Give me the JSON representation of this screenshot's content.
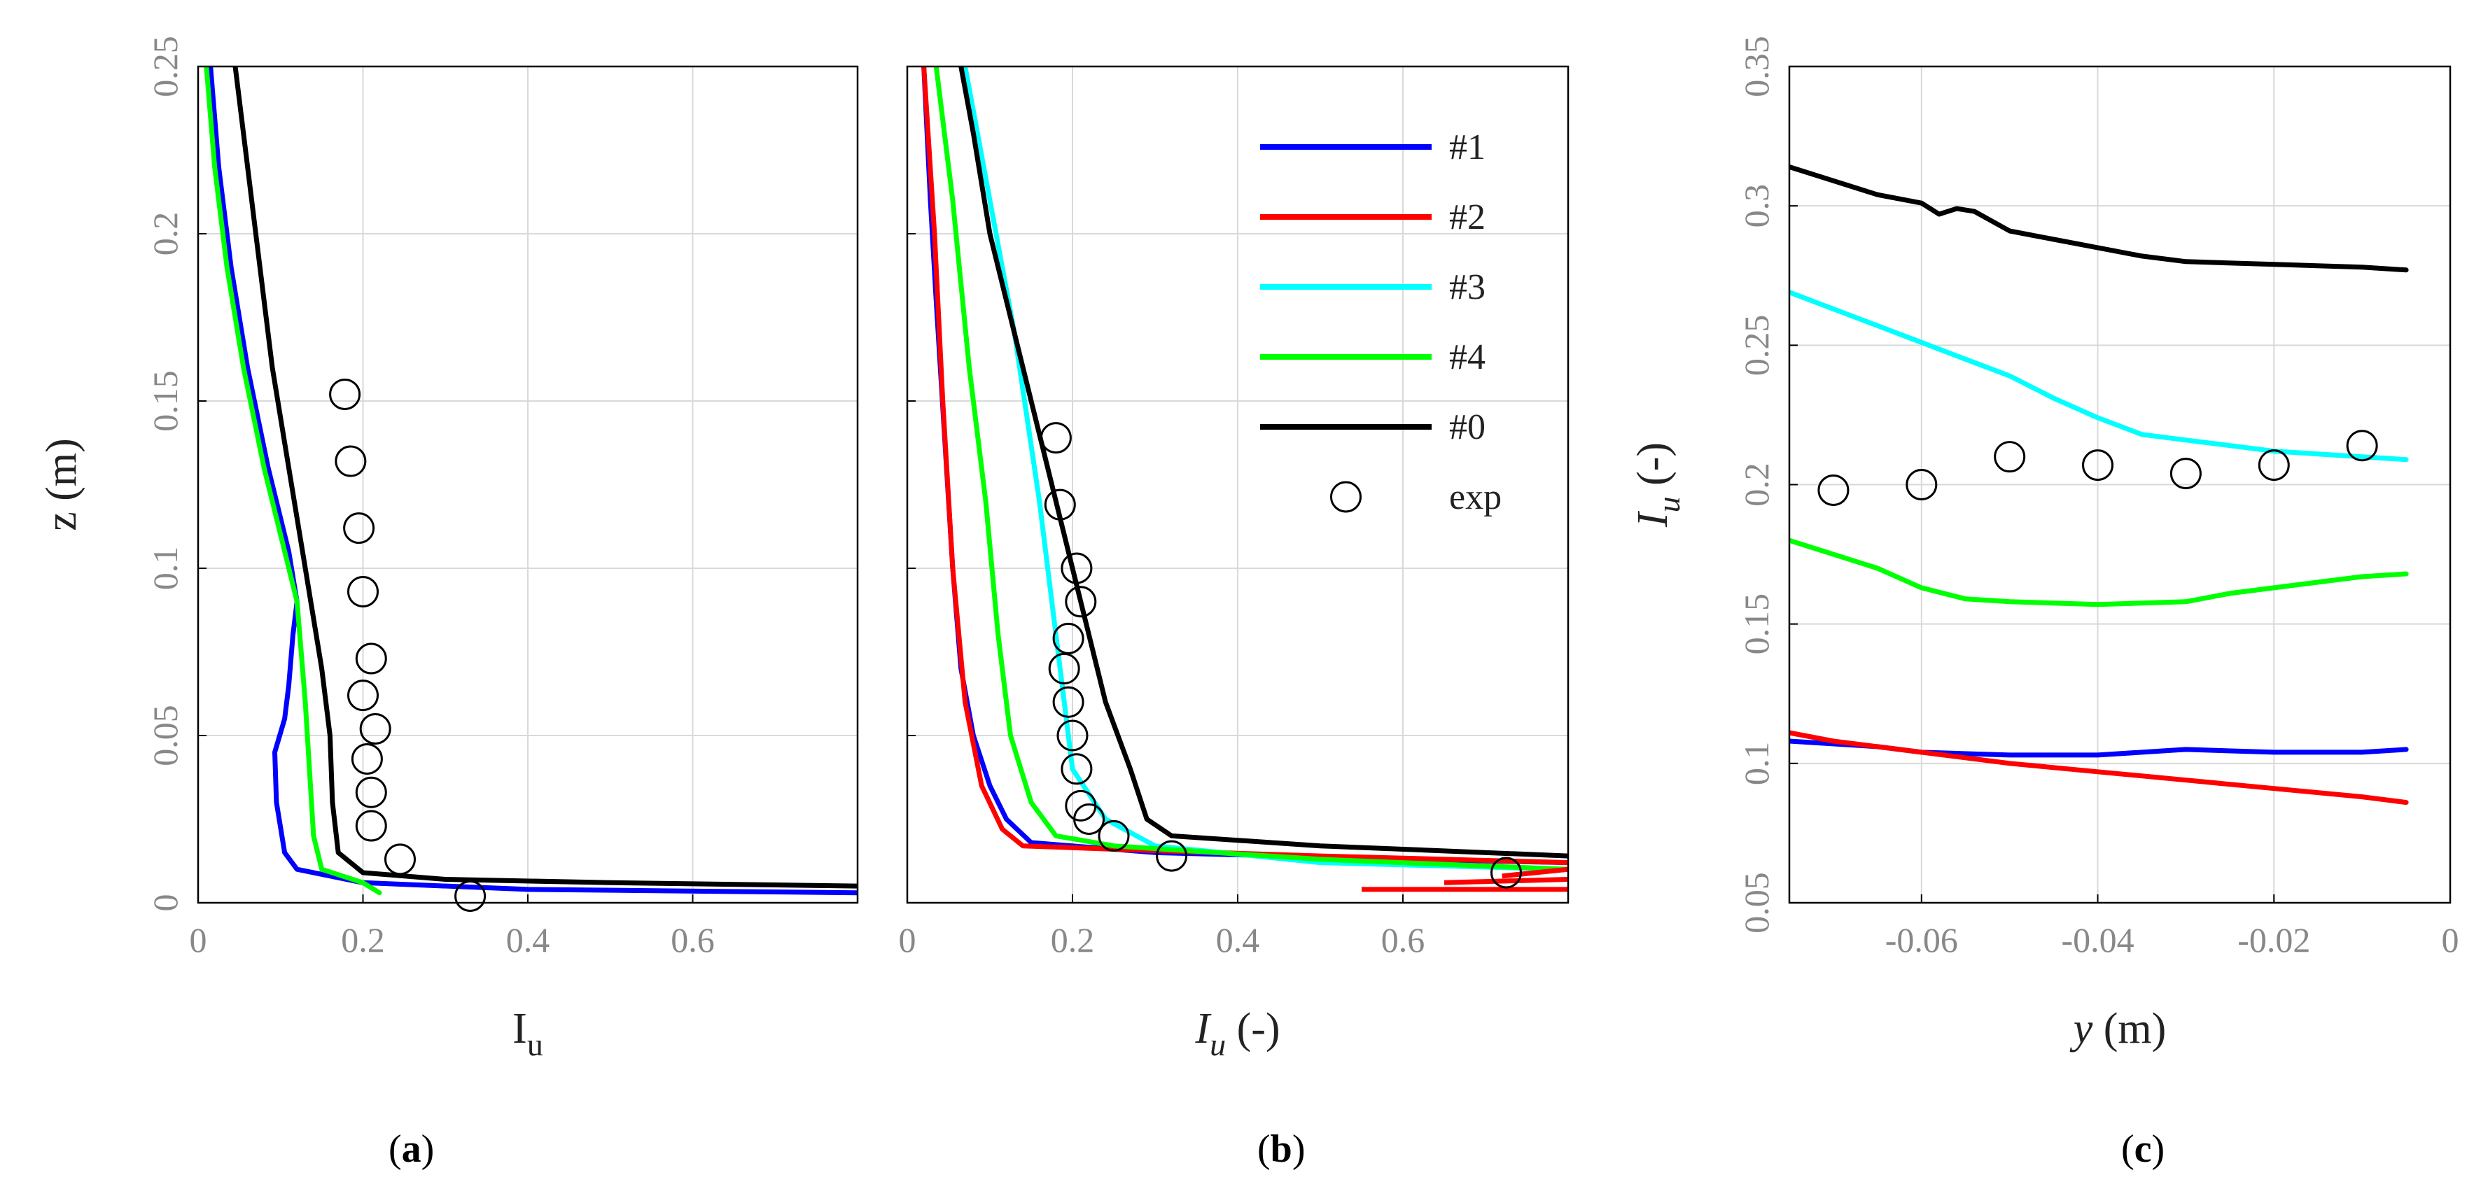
{
  "figure": {
    "panel_labels": [
      {
        "open": "(",
        "letter": "a",
        "close": ")"
      },
      {
        "open": "(",
        "letter": "b",
        "close": ")"
      },
      {
        "open": "(",
        "letter": "c",
        "close": ")"
      }
    ]
  },
  "colors": {
    "s1": "#0000ff",
    "s2": "#ff0000",
    "s3": "#00ffff",
    "s4": "#00ff00",
    "s0": "#000000",
    "grid": "#d9d9d9"
  },
  "chart_data": [
    {
      "id": "a",
      "type": "line",
      "xlabel": "I",
      "xlabel_sub": "u",
      "ylabel": "z (m)",
      "xlim": [
        0,
        0.8
      ],
      "ylim": [
        0,
        0.25
      ],
      "xticks": [
        0,
        0.2,
        0.4,
        0.6
      ],
      "xtick_labels": [
        "0",
        "0.2",
        "0.4",
        "0.6"
      ],
      "yticks": [
        0,
        0.05,
        0.1,
        0.15,
        0.2,
        0.25
      ],
      "ytick_labels": [
        "0",
        "0.05",
        "0.1",
        "0.15",
        "0.2",
        "0.25"
      ],
      "series": [
        {
          "name": "#1",
          "color": "#0000ff",
          "points": [
            [
              0.8,
              0.003
            ],
            [
              0.4,
              0.004
            ],
            [
              0.2,
              0.006
            ],
            [
              0.12,
              0.01
            ],
            [
              0.105,
              0.015
            ],
            [
              0.095,
              0.03
            ],
            [
              0.093,
              0.045
            ],
            [
              0.105,
              0.055
            ],
            [
              0.11,
              0.065
            ],
            [
              0.115,
              0.08
            ],
            [
              0.12,
              0.09
            ],
            [
              0.11,
              0.105
            ],
            [
              0.085,
              0.13
            ],
            [
              0.06,
              0.16
            ],
            [
              0.04,
              0.19
            ],
            [
              0.025,
              0.22
            ],
            [
              0.015,
              0.25
            ]
          ]
        },
        {
          "name": "#4",
          "color": "#00ff00",
          "points": [
            [
              0.22,
              0.003
            ],
            [
              0.2,
              0.006
            ],
            [
              0.15,
              0.01
            ],
            [
              0.14,
              0.02
            ],
            [
              0.135,
              0.04
            ],
            [
              0.13,
              0.06
            ],
            [
              0.12,
              0.09
            ],
            [
              0.1,
              0.11
            ],
            [
              0.08,
              0.13
            ],
            [
              0.055,
              0.16
            ],
            [
              0.035,
              0.19
            ],
            [
              0.02,
              0.22
            ],
            [
              0.01,
              0.25
            ]
          ]
        },
        {
          "name": "#0",
          "color": "#000000",
          "points": [
            [
              0.8,
              0.005
            ],
            [
              0.5,
              0.006
            ],
            [
              0.3,
              0.007
            ],
            [
              0.2,
              0.009
            ],
            [
              0.17,
              0.015
            ],
            [
              0.163,
              0.03
            ],
            [
              0.16,
              0.05
            ],
            [
              0.15,
              0.07
            ],
            [
              0.13,
              0.1
            ],
            [
              0.11,
              0.13
            ],
            [
              0.09,
              0.16
            ],
            [
              0.07,
              0.2
            ],
            [
              0.05,
              0.24
            ],
            [
              0.045,
              0.25
            ]
          ]
        }
      ],
      "exp_points": [
        [
          0.33,
          0.002
        ],
        [
          0.245,
          0.013
        ],
        [
          0.21,
          0.023
        ],
        [
          0.21,
          0.033
        ],
        [
          0.205,
          0.043
        ],
        [
          0.215,
          0.052
        ],
        [
          0.2,
          0.062
        ],
        [
          0.21,
          0.073
        ],
        [
          0.2,
          0.093
        ],
        [
          0.195,
          0.112
        ],
        [
          0.185,
          0.132
        ],
        [
          0.178,
          0.152
        ]
      ]
    },
    {
      "id": "b",
      "type": "line",
      "xlabel": "I",
      "xlabel_sub": "u",
      "xlabel_suffix": " (-)",
      "ylabel": "",
      "xlim": [
        0,
        0.8
      ],
      "ylim": [
        0,
        0.25
      ],
      "xticks": [
        0,
        0.2,
        0.4,
        0.6
      ],
      "xtick_labels": [
        "0",
        "0.2",
        "0.4",
        "0.6"
      ],
      "yticks": [
        0,
        0.05,
        0.1,
        0.15,
        0.2,
        0.25
      ],
      "ytick_labels": [],
      "series": [
        {
          "name": "#1",
          "color": "#0000ff",
          "points": [
            [
              0.8,
              0.012
            ],
            [
              0.6,
              0.013
            ],
            [
              0.3,
              0.015
            ],
            [
              0.15,
              0.018
            ],
            [
              0.12,
              0.025
            ],
            [
              0.1,
              0.035
            ],
            [
              0.08,
              0.05
            ],
            [
              0.065,
              0.07
            ],
            [
              0.055,
              0.1
            ],
            [
              0.045,
              0.14
            ],
            [
              0.035,
              0.18
            ],
            [
              0.028,
              0.21
            ],
            [
              0.02,
              0.25
            ]
          ]
        },
        {
          "name": "#2",
          "color": "#ff0000",
          "points": [
            [
              0.8,
              0.012
            ],
            [
              0.5,
              0.014
            ],
            [
              0.25,
              0.016
            ],
            [
              0.14,
              0.017
            ],
            [
              0.115,
              0.022
            ],
            [
              0.09,
              0.035
            ],
            [
              0.07,
              0.06
            ],
            [
              0.055,
              0.1
            ],
            [
              0.043,
              0.15
            ],
            [
              0.033,
              0.2
            ],
            [
              0.02,
              0.25
            ]
          ]
        },
        {
          "name": "#3",
          "color": "#00ffff",
          "points": [
            [
              0.8,
              0.01
            ],
            [
              0.5,
              0.012
            ],
            [
              0.3,
              0.017
            ],
            [
              0.24,
              0.025
            ],
            [
              0.2,
              0.04
            ],
            [
              0.19,
              0.06
            ],
            [
              0.18,
              0.08
            ],
            [
              0.16,
              0.12
            ],
            [
              0.13,
              0.17
            ],
            [
              0.1,
              0.21
            ],
            [
              0.07,
              0.25
            ]
          ]
        },
        {
          "name": "#4",
          "color": "#00ff00",
          "points": [
            [
              0.8,
              0.01
            ],
            [
              0.5,
              0.013
            ],
            [
              0.25,
              0.017
            ],
            [
              0.18,
              0.02
            ],
            [
              0.15,
              0.03
            ],
            [
              0.125,
              0.05
            ],
            [
              0.11,
              0.08
            ],
            [
              0.095,
              0.12
            ],
            [
              0.075,
              0.16
            ],
            [
              0.055,
              0.21
            ],
            [
              0.035,
              0.25
            ]
          ]
        },
        {
          "name": "#0",
          "color": "#000000",
          "points": [
            [
              0.8,
              0.014
            ],
            [
              0.5,
              0.017
            ],
            [
              0.32,
              0.02
            ],
            [
              0.29,
              0.025
            ],
            [
              0.27,
              0.04
            ],
            [
              0.24,
              0.06
            ],
            [
              0.2,
              0.1
            ],
            [
              0.15,
              0.15
            ],
            [
              0.1,
              0.2
            ],
            [
              0.08,
              0.23
            ],
            [
              0.065,
              0.25
            ]
          ]
        }
      ],
      "extra_red_lines": [
        {
          "points": [
            [
              0.55,
              0.004
            ],
            [
              0.8,
              0.004
            ]
          ]
        },
        {
          "points": [
            [
              0.65,
              0.006
            ],
            [
              0.8,
              0.007
            ]
          ]
        },
        {
          "points": [
            [
              0.72,
              0.008
            ],
            [
              0.8,
              0.01
            ]
          ]
        }
      ],
      "exp_points": [
        [
          0.725,
          0.009
        ],
        [
          0.32,
          0.014
        ],
        [
          0.25,
          0.02
        ],
        [
          0.22,
          0.025
        ],
        [
          0.21,
          0.029
        ],
        [
          0.205,
          0.04
        ],
        [
          0.2,
          0.05
        ],
        [
          0.195,
          0.06
        ],
        [
          0.19,
          0.07
        ],
        [
          0.195,
          0.079
        ],
        [
          0.21,
          0.09
        ],
        [
          0.205,
          0.1
        ],
        [
          0.185,
          0.119
        ],
        [
          0.18,
          0.139
        ]
      ],
      "legend": {
        "placement": "top-right",
        "entries": [
          {
            "label": "#1",
            "color": "#0000ff",
            "kind": "line"
          },
          {
            "label": "#2",
            "color": "#ff0000",
            "kind": "line"
          },
          {
            "label": "#3",
            "color": "#00ffff",
            "kind": "line"
          },
          {
            "label": "#4",
            "color": "#00ff00",
            "kind": "line"
          },
          {
            "label": "#0",
            "color": "#000000",
            "kind": "line"
          },
          {
            "label": "exp",
            "color": "#000000",
            "kind": "marker"
          }
        ]
      }
    },
    {
      "id": "c",
      "type": "line",
      "xlabel": "y",
      "xlabel_suffix": " (m)",
      "ylabel": "I",
      "ylabel_sub": "u",
      "ylabel_suffix": " (-)",
      "xlim": [
        -0.075,
        0
      ],
      "ylim": [
        0.05,
        0.35
      ],
      "xticks": [
        -0.06,
        -0.04,
        -0.02,
        0
      ],
      "xtick_labels": [
        "-0.06",
        "-0.04",
        "-0.02",
        "0"
      ],
      "yticks": [
        0.05,
        0.1,
        0.15,
        0.2,
        0.25,
        0.3,
        0.35
      ],
      "ytick_labels": [
        "0.05",
        "0.1",
        "0.15",
        "0.2",
        "0.25",
        "0.3",
        "0.35"
      ],
      "series": [
        {
          "name": "#0",
          "color": "#000000",
          "points": [
            [
              -0.075,
              0.314
            ],
            [
              -0.07,
              0.309
            ],
            [
              -0.065,
              0.304
            ],
            [
              -0.06,
              0.301
            ],
            [
              -0.058,
              0.297
            ],
            [
              -0.056,
              0.299
            ],
            [
              -0.054,
              0.298
            ],
            [
              -0.05,
              0.291
            ],
            [
              -0.045,
              0.288
            ],
            [
              -0.04,
              0.285
            ],
            [
              -0.035,
              0.282
            ],
            [
              -0.03,
              0.28
            ],
            [
              -0.02,
              0.279
            ],
            [
              -0.01,
              0.278
            ],
            [
              -0.005,
              0.277
            ]
          ]
        },
        {
          "name": "#3",
          "color": "#00ffff",
          "points": [
            [
              -0.075,
              0.269
            ],
            [
              -0.07,
              0.263
            ],
            [
              -0.065,
              0.257
            ],
            [
              -0.06,
              0.251
            ],
            [
              -0.055,
              0.245
            ],
            [
              -0.05,
              0.239
            ],
            [
              -0.045,
              0.231
            ],
            [
              -0.04,
              0.224
            ],
            [
              -0.035,
              0.218
            ],
            [
              -0.03,
              0.216
            ],
            [
              -0.025,
              0.214
            ],
            [
              -0.02,
              0.212
            ],
            [
              -0.015,
              0.211
            ],
            [
              -0.01,
              0.21
            ],
            [
              -0.005,
              0.209
            ]
          ]
        },
        {
          "name": "#4",
          "color": "#00ff00",
          "points": [
            [
              -0.075,
              0.18
            ],
            [
              -0.07,
              0.175
            ],
            [
              -0.065,
              0.17
            ],
            [
              -0.06,
              0.163
            ],
            [
              -0.055,
              0.159
            ],
            [
              -0.05,
              0.158
            ],
            [
              -0.04,
              0.157
            ],
            [
              -0.03,
              0.158
            ],
            [
              -0.025,
              0.161
            ],
            [
              -0.02,
              0.163
            ],
            [
              -0.015,
              0.165
            ],
            [
              -0.01,
              0.167
            ],
            [
              -0.005,
              0.168
            ]
          ]
        },
        {
          "name": "#1",
          "color": "#0000ff",
          "points": [
            [
              -0.075,
              0.108
            ],
            [
              -0.065,
              0.106
            ],
            [
              -0.06,
              0.104
            ],
            [
              -0.05,
              0.103
            ],
            [
              -0.04,
              0.103
            ],
            [
              -0.03,
              0.105
            ],
            [
              -0.02,
              0.104
            ],
            [
              -0.01,
              0.104
            ],
            [
              -0.005,
              0.105
            ]
          ]
        },
        {
          "name": "#2",
          "color": "#ff0000",
          "points": [
            [
              -0.075,
              0.111
            ],
            [
              -0.07,
              0.108
            ],
            [
              -0.06,
              0.104
            ],
            [
              -0.05,
              0.1
            ],
            [
              -0.04,
              0.097
            ],
            [
              -0.03,
              0.094
            ],
            [
              -0.02,
              0.091
            ],
            [
              -0.01,
              0.088
            ],
            [
              -0.005,
              0.086
            ]
          ]
        }
      ],
      "exp_points": [
        [
          -0.07,
          0.198
        ],
        [
          -0.06,
          0.2
        ],
        [
          -0.05,
          0.21
        ],
        [
          -0.04,
          0.207
        ],
        [
          -0.03,
          0.204
        ],
        [
          -0.02,
          0.207
        ],
        [
          -0.01,
          0.214
        ]
      ]
    }
  ]
}
